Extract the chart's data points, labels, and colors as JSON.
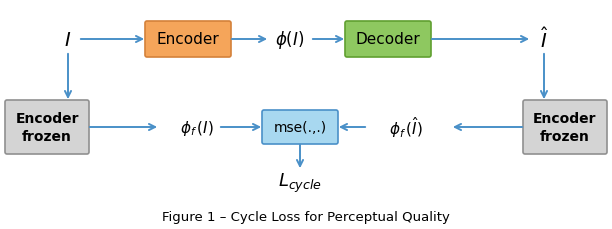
{
  "title": "Figure 1 – Cycle Loss for Perceptual Quality",
  "bg_color": "#ffffff",
  "arrow_color": "#4a90c8",
  "encoder_box": {
    "facecolor": "#f5a55a",
    "edgecolor": "#d4813a",
    "label": "Encoder"
  },
  "decoder_box": {
    "facecolor": "#8ec860",
    "edgecolor": "#60a030",
    "label": "Decoder"
  },
  "mse_box": {
    "facecolor": "#a8d8f0",
    "edgecolor": "#4a90c8",
    "label": "mse(.,.)"
  },
  "frozen_box": {
    "facecolor": "#d4d4d4",
    "edgecolor": "#909090"
  },
  "frozen_label": "Encoder\nfrozen",
  "text_I": "$I$",
  "text_phi_I": "$\\phi(I)$",
  "text_phi_f_I": "$\\phi_f\\,(I)$",
  "text_phi_f_Ihat": "$\\phi_f\\,(\\hat{I})$",
  "text_Ihat": "$\\hat{I}$",
  "text_Lcycle": "$L_{cycle}$",
  "caption": "Figure 1 – Cycle Loss for Perceptual Quality"
}
